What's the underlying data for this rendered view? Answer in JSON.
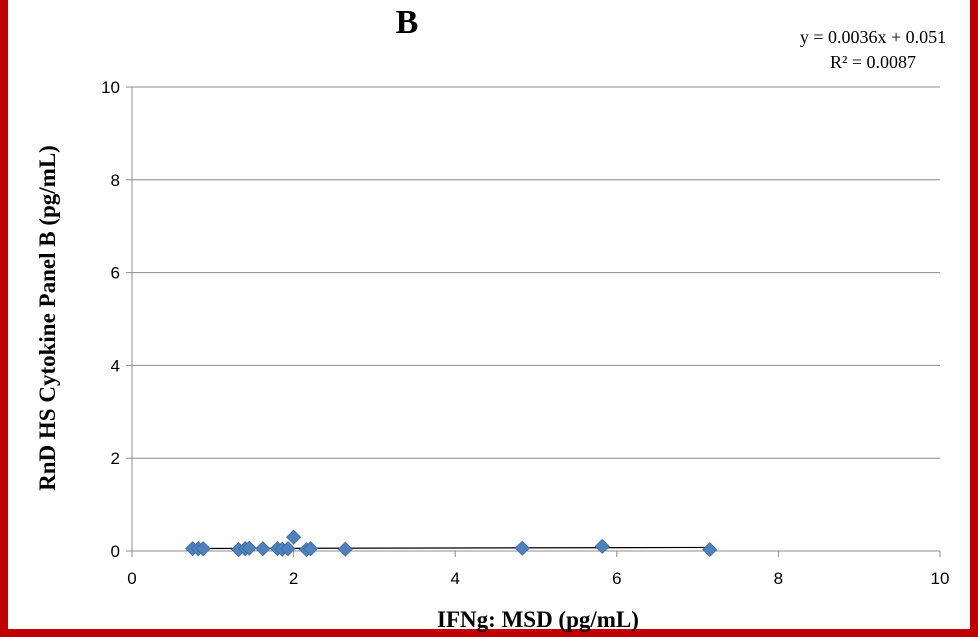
{
  "chart_data": {
    "type": "scatter",
    "title": "B",
    "xlabel": "IFNg:  MSD (pg/mL)",
    "ylabel": "RnD HS Cytokine Panel B (pg/mL)",
    "xlim": [
      0,
      10
    ],
    "ylim": [
      0,
      10
    ],
    "x_ticks": [
      "0",
      "2",
      "4",
      "6",
      "8",
      "10"
    ],
    "y_ticks": [
      "0",
      "2",
      "4",
      "6",
      "8",
      "10"
    ],
    "grid": "horizontal",
    "marker_color": "#4f81bd",
    "trendline": {
      "type": "linear",
      "equation": "y = 0.0036x + 0.051",
      "r_squared": "R² = 0.0087",
      "slope": 0.0036,
      "intercept": 0.051,
      "x_range": [
        0.75,
        7.15
      ]
    },
    "points": [
      {
        "x": 0.75,
        "y": 0.05
      },
      {
        "x": 0.82,
        "y": 0.05
      },
      {
        "x": 0.88,
        "y": 0.05
      },
      {
        "x": 1.32,
        "y": 0.03
      },
      {
        "x": 1.4,
        "y": 0.05
      },
      {
        "x": 1.45,
        "y": 0.06
      },
      {
        "x": 1.62,
        "y": 0.05
      },
      {
        "x": 1.8,
        "y": 0.05
      },
      {
        "x": 1.86,
        "y": 0.04
      },
      {
        "x": 1.93,
        "y": 0.05
      },
      {
        "x": 2.0,
        "y": 0.3
      },
      {
        "x": 2.16,
        "y": 0.03
      },
      {
        "x": 2.21,
        "y": 0.05
      },
      {
        "x": 2.64,
        "y": 0.04
      },
      {
        "x": 4.83,
        "y": 0.06
      },
      {
        "x": 5.82,
        "y": 0.1
      },
      {
        "x": 7.15,
        "y": 0.03
      }
    ]
  }
}
